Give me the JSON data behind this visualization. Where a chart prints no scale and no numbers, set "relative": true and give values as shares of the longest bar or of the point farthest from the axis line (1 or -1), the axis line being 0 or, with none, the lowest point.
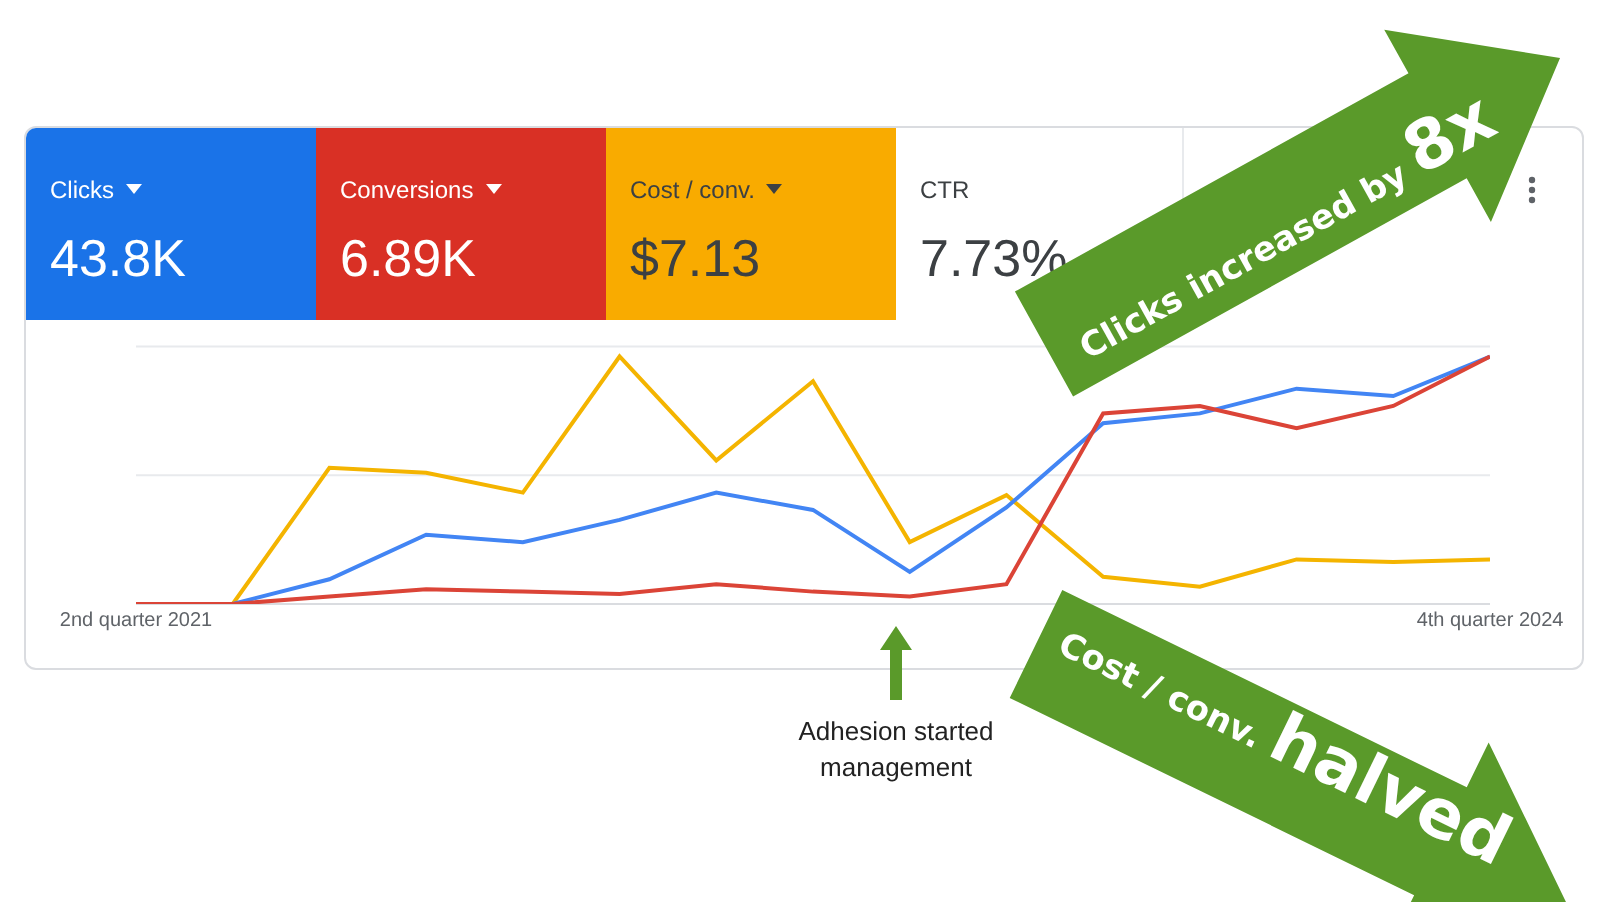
{
  "chart_data": {
    "type": "line",
    "relative": true,
    "marker": "none",
    "ref_lines": [
      {
        "axis": "y",
        "value": 0.52,
        "color": "#e8eaed"
      },
      {
        "axis": "y",
        "value": 1.04,
        "color": "#e8eaed"
      }
    ],
    "line_style": "solid",
    "categories": [
      "2nd quarter 2021",
      null,
      null,
      null,
      null,
      null,
      null,
      null,
      null,
      null,
      null,
      null,
      null,
      null,
      "4th quarter 2024"
    ],
    "series": [
      {
        "color": "#f4b400",
        "values": [
          0,
          0,
          0.55,
          0.53,
          0.45,
          1.0,
          0.58,
          0.9,
          0.25,
          0.44,
          0.11,
          0.07,
          0.18,
          0.17,
          0.18
        ]
      },
      {
        "color": "#4285f4",
        "values": [
          0,
          0,
          0.1,
          0.28,
          0.25,
          0.34,
          0.45,
          0.38,
          0.13,
          0.39,
          0.73,
          0.77,
          0.87,
          0.84,
          1.0
        ]
      },
      {
        "color": "#db4437",
        "values": [
          0,
          0,
          0.03,
          0.06,
          0.05,
          0.04,
          0.08,
          0.05,
          0.03,
          0.08,
          0.77,
          0.8,
          0.71,
          0.8,
          1.0
        ]
      }
    ],
    "annotations": [
      "Clicks",
      "43.8K",
      "Conversions",
      "6.89K",
      "Cost / conv.",
      "$7.13",
      "CTR",
      "7.73%",
      "Clicks increased by",
      "8x",
      "Cost / conv.",
      "halved",
      "Adhesion started management"
    ]
  }
}
